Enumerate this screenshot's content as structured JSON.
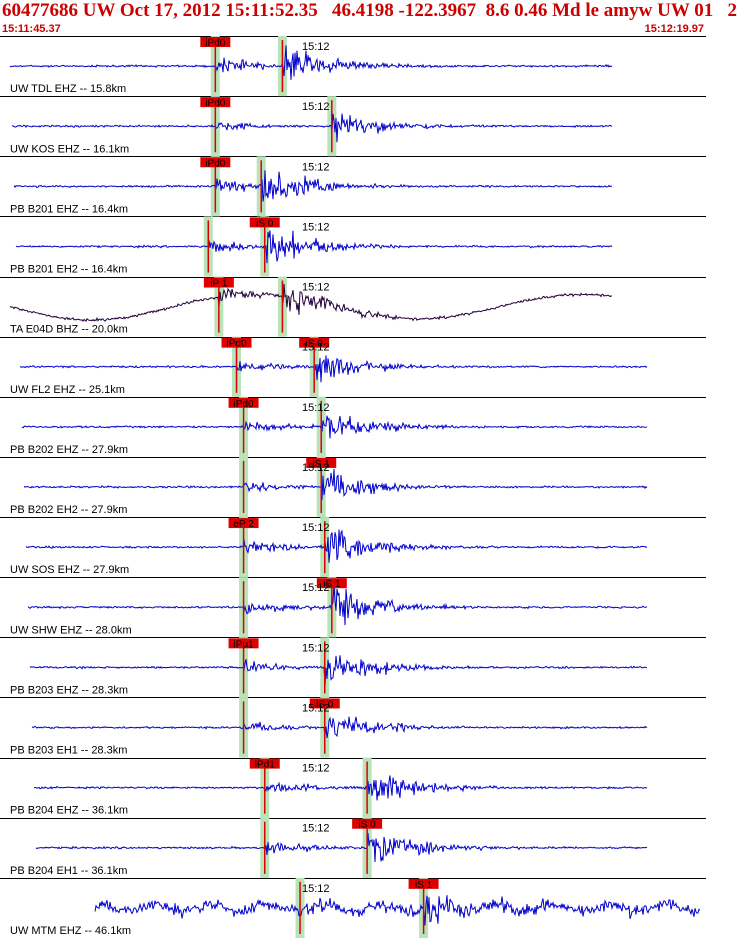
{
  "header": {
    "title": "60477686 UW Oct 17, 2012 15:11:52.35   46.4198 -122.3967  8.6 0.46 Md le amyw UW 01   2",
    "start_time": "15:11:45.37",
    "end_time": "15:12:19.97"
  },
  "colors": {
    "trace": "#0000cc",
    "trace_alt": "#22003a",
    "pick": "#dd0000",
    "pick_band": "#b9e3b9",
    "grid": "#000000",
    "label": "#000000"
  },
  "chart_data": {
    "type": "seismogram",
    "time_range": [
      "15:11:45.37",
      "15:12:19.97"
    ],
    "time_tick_label": "15:12",
    "traces": [
      {
        "label": "UW TDL EHZ -- 15.8km",
        "p_label": "iPd0",
        "s_label": "",
        "p": 0.305,
        "s": 0.4,
        "amp": 0.8,
        "lowfreq": false
      },
      {
        "label": "UW KOS EHZ -- 16.1km",
        "p_label": "iPd0",
        "s_label": "",
        "p": 0.305,
        "s": 0.47,
        "amp": 0.55,
        "lowfreq": false
      },
      {
        "label": "PB B201 EHZ -- 16.4km",
        "p_label": "iPd0",
        "s_label": "",
        "p": 0.305,
        "s": 0.37,
        "amp": 0.75,
        "lowfreq": false
      },
      {
        "label": "PB B201 EH2 -- 16.4km",
        "p_label": "",
        "s_label": "iS 0",
        "p": 0.295,
        "s": 0.375,
        "amp": 0.7,
        "lowfreq": false
      },
      {
        "label": "TA E04D BHZ -- 20.0km",
        "p_label": "iP 1",
        "s_label": "",
        "p": 0.31,
        "s": 0.4,
        "amp": 0.8,
        "lowfreq": true
      },
      {
        "label": "UW FL2 EHZ -- 25.1km",
        "p_label": "iPd0",
        "s_label": "iS 0",
        "p": 0.335,
        "s": 0.445,
        "amp": 0.6,
        "lowfreq": false
      },
      {
        "label": "PB B202 EHZ -- 27.9km",
        "p_label": "iPd0",
        "s_label": "",
        "p": 0.345,
        "s": 0.455,
        "amp": 0.65,
        "lowfreq": false
      },
      {
        "label": "PB B202 EH2 -- 27.9km",
        "p_label": "",
        "s_label": "iS 1",
        "p": 0.345,
        "s": 0.455,
        "amp": 0.6,
        "lowfreq": false
      },
      {
        "label": "UW SOS EHZ -- 27.9km",
        "p_label": "eP 2",
        "s_label": "",
        "p": 0.345,
        "s": 0.46,
        "amp": 0.8,
        "lowfreq": false
      },
      {
        "label": "UW SHW EHZ -- 28.0km",
        "p_label": "",
        "s_label": "iS 1",
        "p": 0.345,
        "s": 0.47,
        "amp": 0.8,
        "lowfreq": false
      },
      {
        "label": "PB B203 EHZ -- 28.3km",
        "p_label": "iPu1",
        "s_label": "",
        "p": 0.345,
        "s": 0.46,
        "amp": 0.7,
        "lowfreq": false
      },
      {
        "label": "PB B203 EH1 -- 28.3km",
        "p_label": "",
        "s_label": "iS 0",
        "p": 0.345,
        "s": 0.46,
        "amp": 0.6,
        "lowfreq": false
      },
      {
        "label": "PB B204 EHZ -- 36.1km",
        "p_label": "iPd1",
        "s_label": "",
        "p": 0.375,
        "s": 0.52,
        "amp": 0.75,
        "lowfreq": false
      },
      {
        "label": "PB B204 EH1 -- 36.1km",
        "p_label": "",
        "s_label": "iS 0",
        "p": 0.375,
        "s": 0.52,
        "amp": 0.75,
        "lowfreq": false
      },
      {
        "label": "UW MTM EHZ -- 46.1km",
        "p_label": "",
        "s_label": "iS 1",
        "p": 0.425,
        "s": 0.6,
        "amp": 0.7,
        "lowfreq": false
      }
    ]
  }
}
